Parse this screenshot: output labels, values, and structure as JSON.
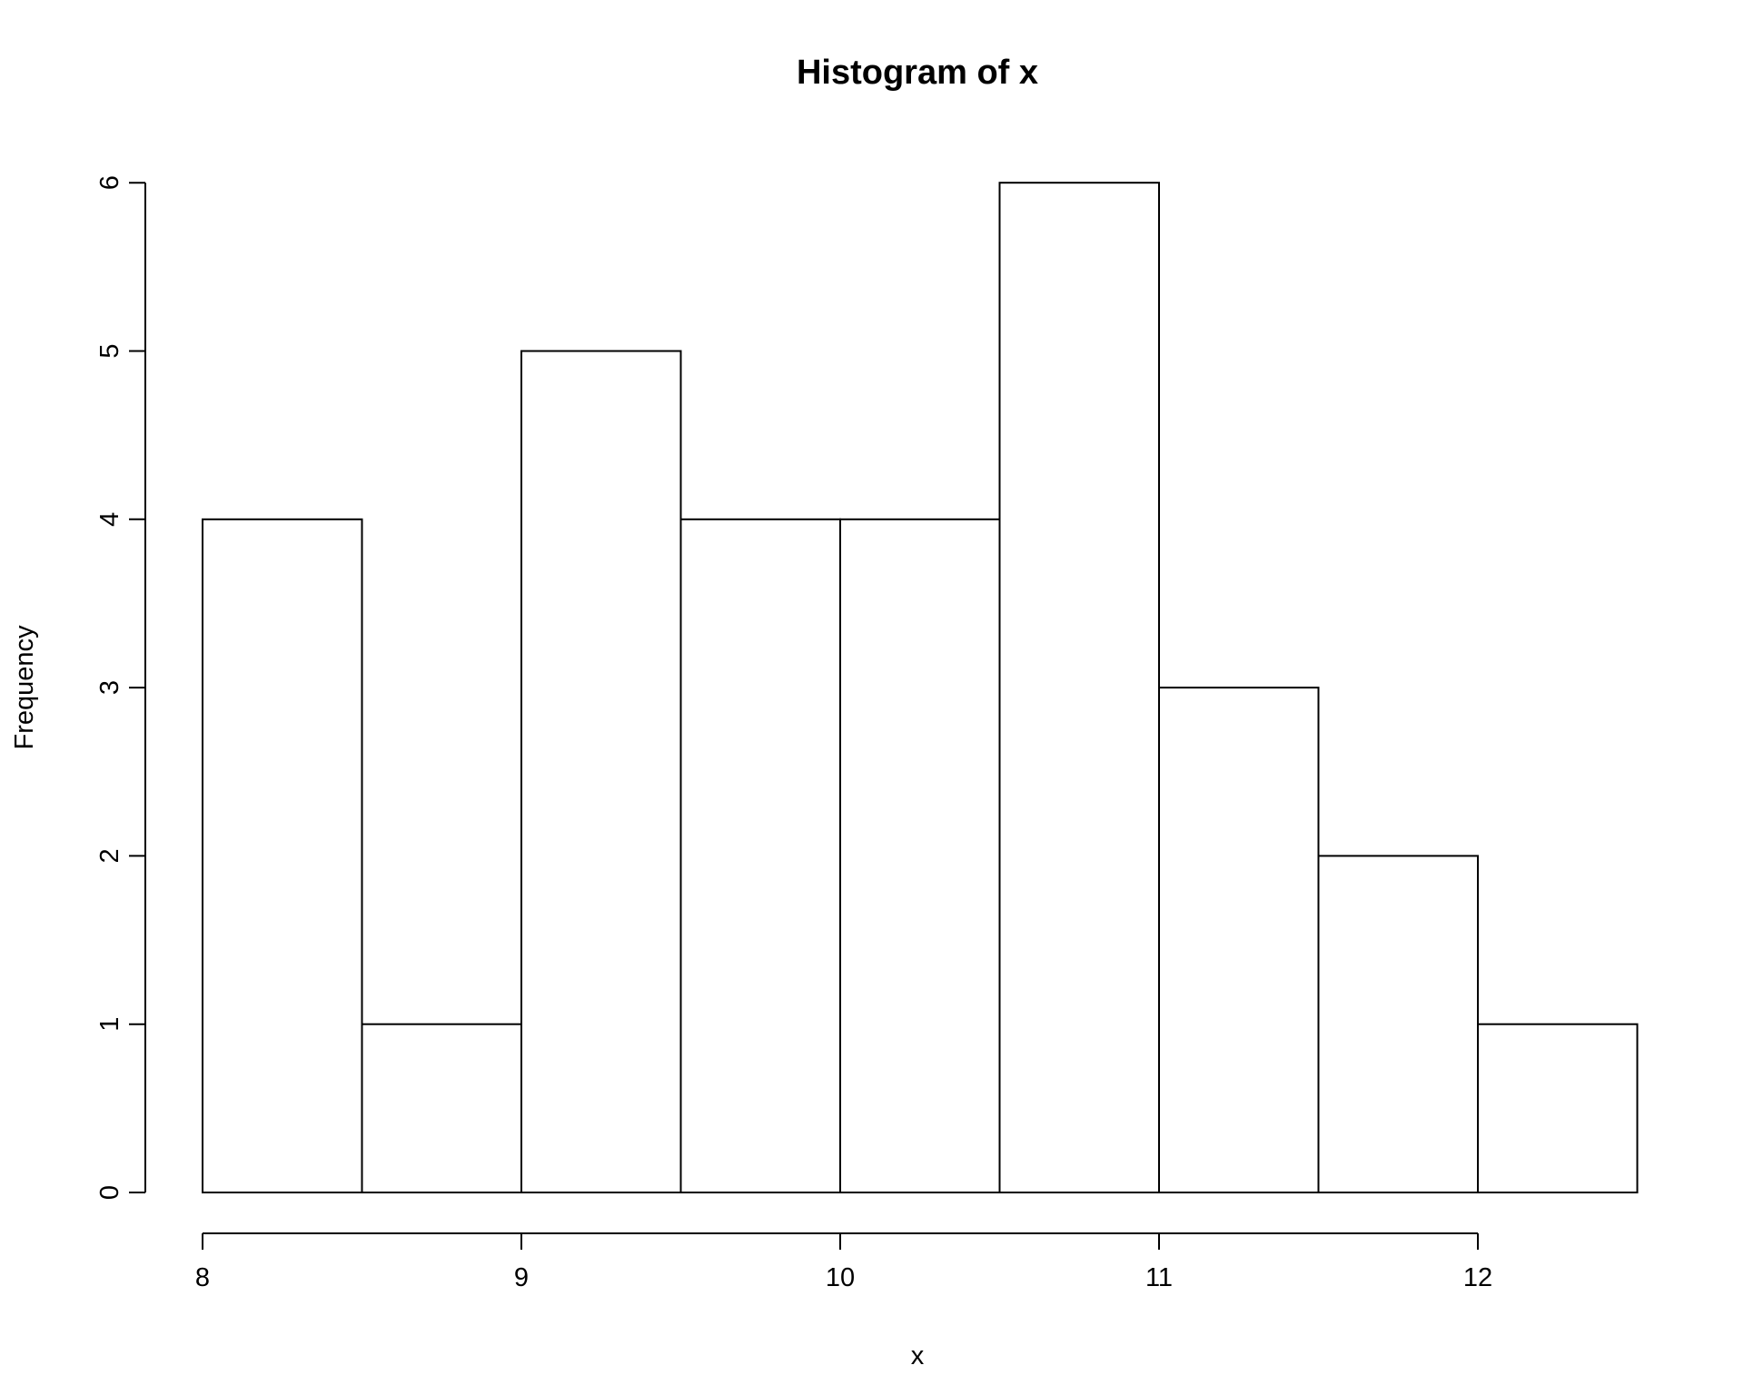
{
  "chart_data": {
    "type": "bar",
    "title": "Histogram of x",
    "xlabel": "x",
    "ylabel": "Frequency",
    "bins": [
      {
        "start": 8.0,
        "end": 8.5,
        "count": 4
      },
      {
        "start": 8.5,
        "end": 9.0,
        "count": 1
      },
      {
        "start": 9.0,
        "end": 9.5,
        "count": 5
      },
      {
        "start": 9.5,
        "end": 10.0,
        "count": 4
      },
      {
        "start": 10.0,
        "end": 10.5,
        "count": 4
      },
      {
        "start": 10.5,
        "end": 11.0,
        "count": 6
      },
      {
        "start": 11.0,
        "end": 11.5,
        "count": 3
      },
      {
        "start": 11.5,
        "end": 12.0,
        "count": 2
      },
      {
        "start": 12.0,
        "end": 12.5,
        "count": 1
      }
    ],
    "xlim": [
      8,
      12.5
    ],
    "ylim": [
      0,
      6
    ],
    "x_ticks": [
      "8",
      "9",
      "10",
      "11",
      "12"
    ],
    "y_ticks": [
      "0",
      "1",
      "2",
      "3",
      "4",
      "5",
      "6"
    ],
    "grid": false,
    "bar_fill": "#ffffff",
    "bar_stroke": "#000000"
  }
}
